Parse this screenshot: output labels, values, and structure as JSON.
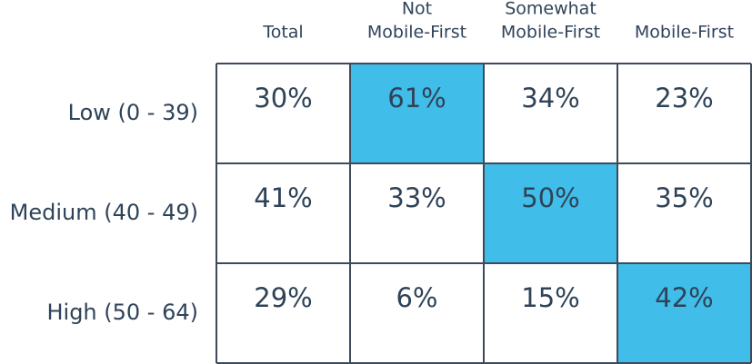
{
  "table": {
    "columns": [
      [
        "Total"
      ],
      [
        "Not",
        "Mobile-First"
      ],
      [
        "Somewhat",
        "Mobile-First"
      ],
      [
        "Mobile-First"
      ]
    ],
    "rows": [
      {
        "label": "Low (0 - 39)",
        "cells": [
          "30%",
          "61%",
          "34%",
          "23%"
        ],
        "highlight": 1
      },
      {
        "label": "Medium (40 - 49)",
        "cells": [
          "41%",
          "33%",
          "50%",
          "35%"
        ],
        "highlight": 2
      },
      {
        "label": "High (50 - 64)",
        "cells": [
          "29%",
          "6%",
          "15%",
          "42%"
        ],
        "highlight": 3
      }
    ],
    "highlight_color": "#41bde9",
    "text_color": "#2f4358"
  }
}
